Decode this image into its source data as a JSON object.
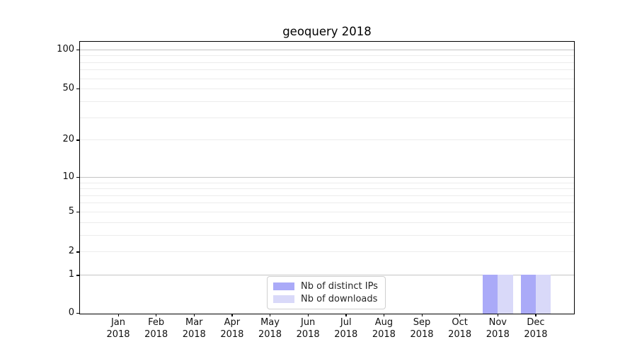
{
  "chart_data": {
    "type": "bar",
    "title": "geoquery 2018",
    "year": "2018",
    "months": [
      "Jan",
      "Feb",
      "Mar",
      "Apr",
      "May",
      "Jun",
      "Jul",
      "Aug",
      "Sep",
      "Oct",
      "Nov",
      "Dec"
    ],
    "series": [
      {
        "name": "Nb of distinct IPs",
        "color": "#aaaaf8",
        "values": [
          0,
          0,
          0,
          0,
          0,
          0,
          0,
          0,
          0,
          0,
          1,
          1
        ]
      },
      {
        "name": "Nb of downloads",
        "color": "#d9d9f9",
        "values": [
          0,
          0,
          0,
          0,
          0,
          0,
          0,
          0,
          0,
          0,
          1,
          1
        ]
      }
    ],
    "y_axis": {
      "scale": "log1p",
      "tick_values": [
        0,
        1,
        2,
        5,
        10,
        20,
        50,
        100
      ],
      "major_gridlines": [
        1,
        10,
        100
      ],
      "minor_gridlines": [
        2,
        3,
        4,
        5,
        6,
        7,
        8,
        9,
        20,
        30,
        40,
        50,
        60,
        70,
        80,
        90
      ],
      "range": [
        0,
        115
      ]
    },
    "legend_position": "lower center",
    "grid": true
  },
  "colors": {
    "distinct_ips_bar": "#aaaaf8",
    "downloads_bar": "#d9d9f9",
    "major_grid": "#c4c4c4",
    "minor_grid": "#ececec",
    "axis": "#000000",
    "background": "#ffffff"
  }
}
